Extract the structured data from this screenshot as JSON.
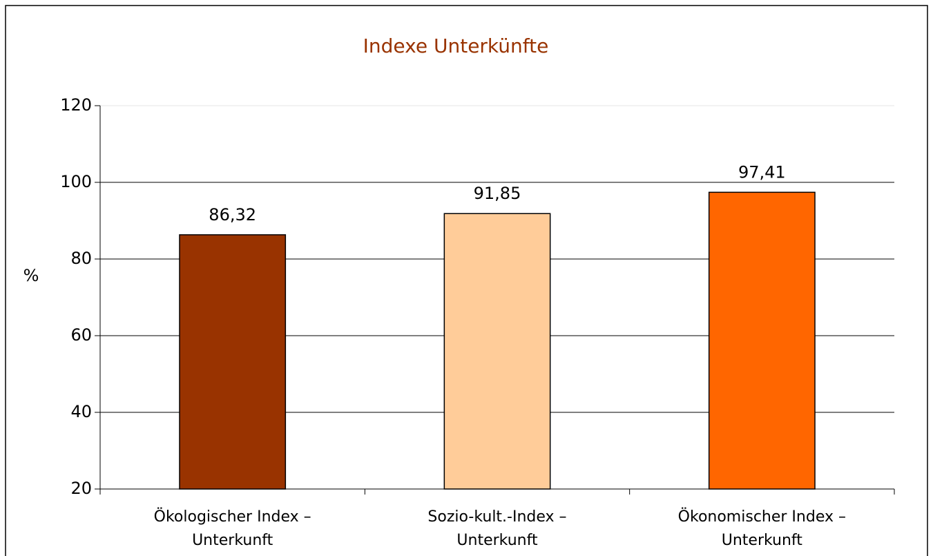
{
  "chart_data": {
    "type": "bar",
    "title": "Indexe Unterkünfte",
    "y_label": "%",
    "categories": [
      "Ökologischer Index – Unterkunft",
      "Sozio-kult.-Index – Unterkunft",
      "Ökonomischer Index – Unterkunft"
    ],
    "values": [
      86.32,
      91.85,
      97.41
    ],
    "value_labels": [
      "86,32",
      "91,85",
      "97,41"
    ],
    "colors": [
      "#993300",
      "#ffcc99",
      "#ff6600"
    ],
    "ylim": [
      20,
      120
    ],
    "yticks": [
      20,
      40,
      60,
      80,
      100,
      120
    ],
    "grid": true
  }
}
